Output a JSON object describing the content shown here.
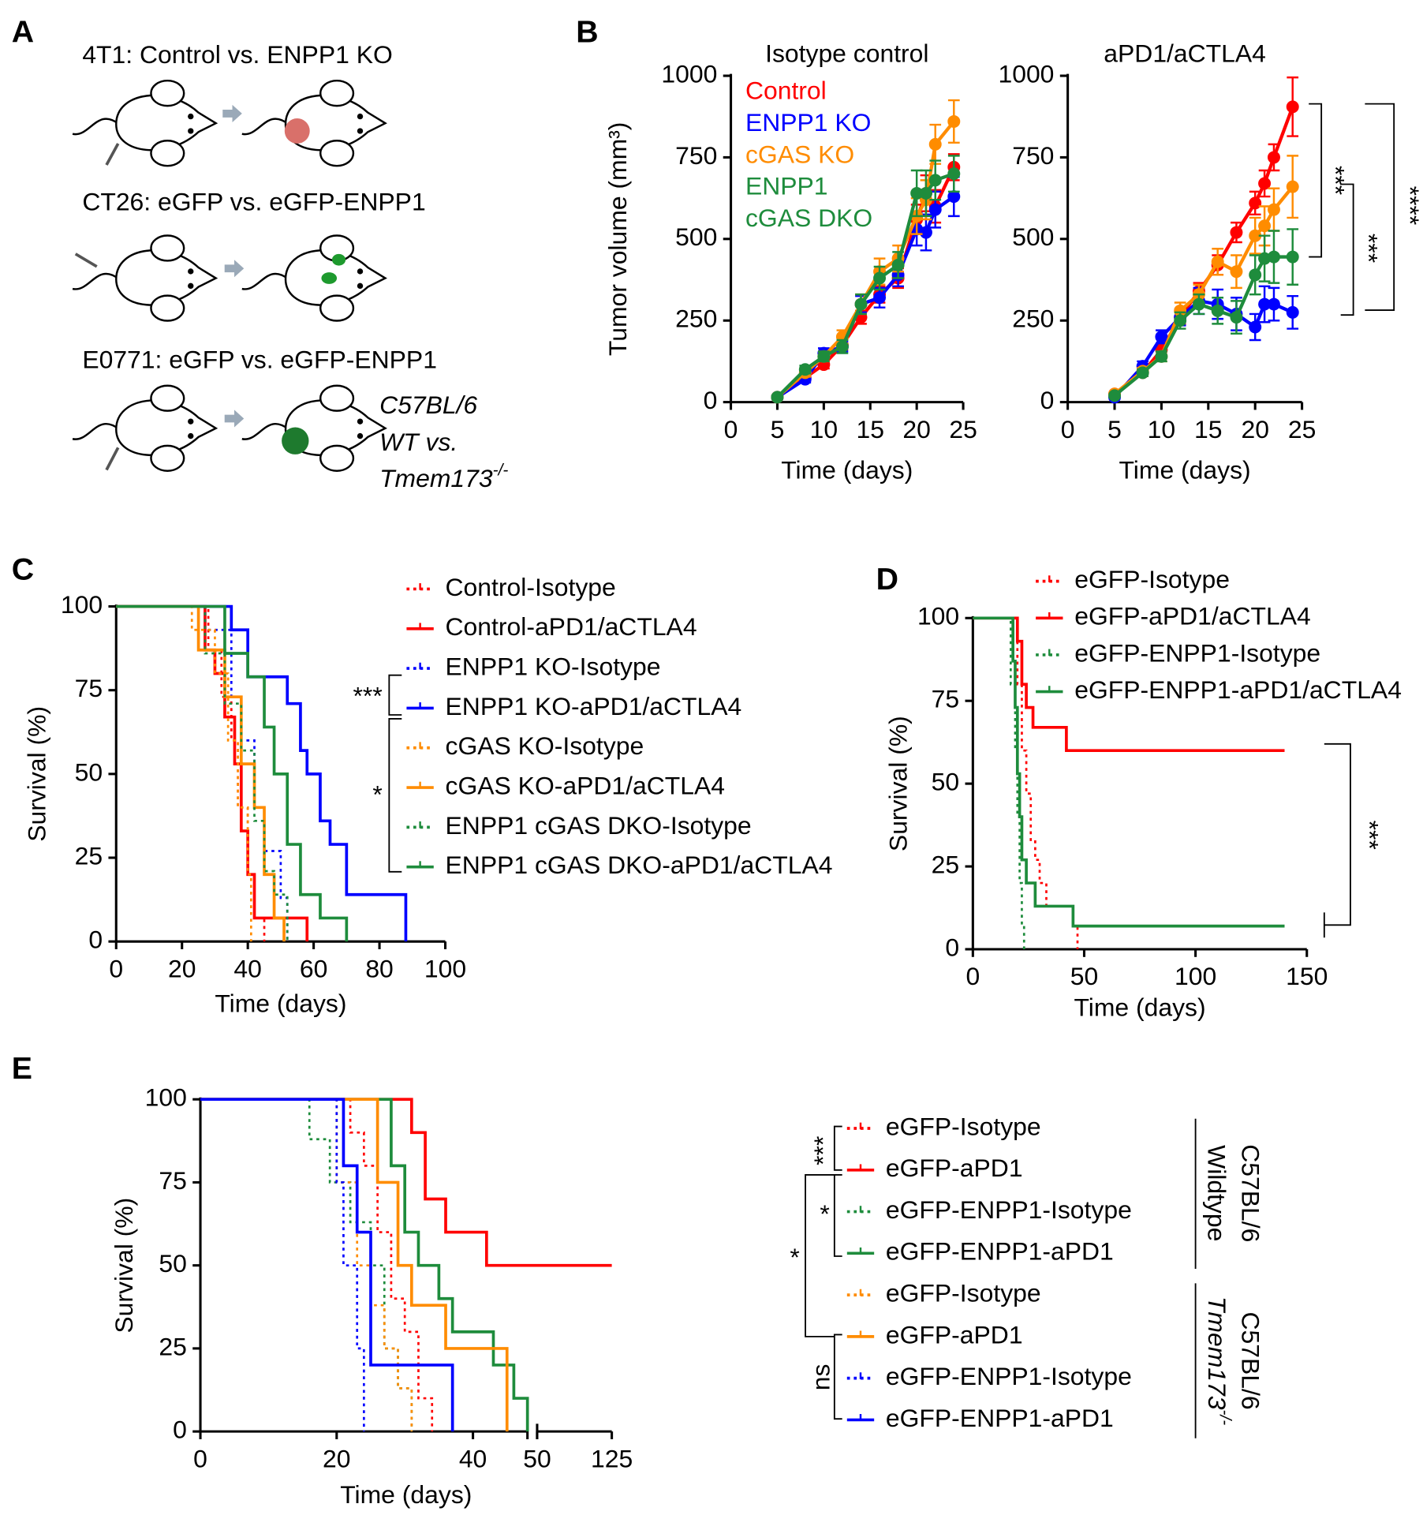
{
  "diagram": {
    "panel_label": "A",
    "rows": [
      "4T1: Control vs. ENPP1 KO",
      "CT26: eGFP vs. eGFP-ENPP1",
      "E0771: eGFP vs. eGFP-ENPP1"
    ],
    "note": [
      "C57BL/6",
      "WT vs.",
      "Tmem173-/-"
    ]
  },
  "chart_data": [
    {
      "panel_label": "B",
      "type": "line",
      "title": "Isotype control",
      "x_label": "Time (days)",
      "y_label": "Tumor volume (mm³)",
      "x": [
        5,
        8,
        10,
        12,
        14,
        16,
        18,
        20,
        21,
        22,
        24
      ],
      "xlim": [
        0,
        25
      ],
      "xticks": [
        0,
        5,
        10,
        15,
        20,
        25
      ],
      "ylim": [
        0,
        1000
      ],
      "yticks": [
        0,
        250,
        500,
        750,
        1000
      ],
      "series": [
        {
          "name": "Control",
          "color": "#ff0000",
          "values": [
            15,
            75,
            115,
            175,
            260,
            330,
            380,
            560,
            640,
            600,
            720
          ],
          "errors": [
            5,
            10,
            12,
            15,
            20,
            25,
            30,
            45,
            55,
            50,
            40
          ]
        },
        {
          "name": "ENPP1 KO",
          "color": "#0000ff",
          "values": [
            15,
            70,
            150,
            170,
            300,
            320,
            390,
            530,
            520,
            590,
            630
          ],
          "errors": [
            5,
            10,
            15,
            15,
            25,
            30,
            35,
            50,
            55,
            55,
            60
          ]
        },
        {
          "name": "cGAS KO",
          "color": "#ff8c00",
          "values": [
            15,
            90,
            140,
            200,
            300,
            400,
            440,
            570,
            620,
            790,
            860
          ],
          "errors": [
            5,
            12,
            15,
            20,
            30,
            40,
            40,
            55,
            60,
            60,
            65
          ]
        },
        {
          "name": "ENPP1 cGAS DKO",
          "color": "#1e8c3c",
          "values": [
            15,
            100,
            140,
            170,
            300,
            380,
            420,
            640,
            640,
            680,
            700
          ],
          "errors": [
            5,
            12,
            15,
            20,
            30,
            35,
            40,
            70,
            70,
            60,
            55
          ]
        }
      ]
    },
    {
      "type": "line",
      "title": "aPD1/aCTLA4",
      "x_label": "Time (days)",
      "x": [
        5,
        8,
        10,
        12,
        14,
        16,
        18,
        20,
        21,
        22,
        24
      ],
      "xlim": [
        0,
        25
      ],
      "xticks": [
        0,
        5,
        10,
        15,
        20,
        25
      ],
      "ylim": [
        0,
        1000
      ],
      "yticks": [
        0,
        250,
        500,
        750,
        1000
      ],
      "annotations": [
        "***",
        "***",
        "****"
      ],
      "series": [
        {
          "color": "#ff0000",
          "values": [
            25,
            90,
            160,
            260,
            340,
            420,
            520,
            610,
            670,
            750,
            905
          ],
          "errors": [
            5,
            10,
            15,
            20,
            25,
            30,
            30,
            35,
            40,
            40,
            90
          ]
        },
        {
          "color": "#0000ff",
          "values": [
            15,
            110,
            200,
            260,
            310,
            300,
            270,
            230,
            300,
            300,
            275
          ],
          "errors": [
            5,
            15,
            20,
            25,
            40,
            45,
            50,
            40,
            55,
            50,
            50
          ]
        },
        {
          "color": "#ff8c00",
          "values": [
            25,
            95,
            140,
            280,
            330,
            430,
            400,
            510,
            540,
            590,
            660
          ],
          "errors": [
            5,
            10,
            15,
            25,
            30,
            40,
            50,
            55,
            60,
            65,
            95
          ]
        },
        {
          "color": "#1e8c3c",
          "values": [
            20,
            90,
            140,
            250,
            300,
            280,
            260,
            390,
            440,
            445,
            445
          ],
          "errors": [
            5,
            10,
            15,
            25,
            30,
            40,
            50,
            60,
            70,
            80,
            85
          ]
        }
      ]
    },
    {
      "panel_label": "C",
      "type": "step",
      "x_label": "Time (days)",
      "y_label": "Survival (%)",
      "xlim": [
        0,
        100
      ],
      "xticks": [
        0,
        20,
        40,
        60,
        80,
        100
      ],
      "ylim": [
        0,
        100
      ],
      "yticks": [
        0,
        25,
        50,
        75,
        100
      ],
      "annotations": [
        "***",
        "*"
      ],
      "series": [
        {
          "name": "Control-Isotype",
          "color": "#ff0000",
          "style": "dotted",
          "x": [
            0,
            28,
            32,
            35,
            37,
            40,
            42,
            45
          ],
          "values": [
            100,
            87,
            73,
            60,
            40,
            20,
            7,
            0
          ]
        },
        {
          "name": "Control-aPD1/aCTLA4",
          "color": "#ff0000",
          "style": "solid",
          "x": [
            0,
            27,
            30,
            33,
            36,
            38,
            40,
            42,
            48,
            58
          ],
          "values": [
            100,
            87,
            80,
            67,
            53,
            33,
            20,
            7,
            7,
            0
          ]
        },
        {
          "name": "ENPP1 KO-Isotype",
          "color": "#0000ff",
          "style": "dotted",
          "x": [
            0,
            27,
            35,
            38,
            42,
            45,
            50,
            52
          ],
          "values": [
            100,
            93,
            73,
            60,
            40,
            27,
            13,
            0
          ]
        },
        {
          "name": "ENPP1 KO-aPD1/aCTLA4",
          "color": "#0000ff",
          "style": "solid",
          "x": [
            0,
            35,
            40,
            52,
            56,
            58,
            62,
            65,
            70,
            88
          ],
          "values": [
            100,
            93,
            79,
            71,
            57,
            50,
            36,
            29,
            14,
            0
          ]
        },
        {
          "name": "cGAS KO-Isotype",
          "color": "#ff8c00",
          "style": "dotted",
          "x": [
            0,
            23,
            30,
            34,
            37,
            40,
            41
          ],
          "values": [
            100,
            93,
            80,
            60,
            40,
            20,
            0
          ]
        },
        {
          "name": "cGAS KO-aPD1/aCTLA4",
          "color": "#ff8c00",
          "style": "solid",
          "x": [
            0,
            25,
            33,
            38,
            42,
            45,
            48,
            51
          ],
          "values": [
            100,
            87,
            73,
            53,
            40,
            20,
            7,
            0
          ]
        },
        {
          "name": "ENPP1 cGAS DKO-Isotype",
          "color": "#1e8c3c",
          "style": "dotted",
          "x": [
            0,
            27,
            33,
            38,
            42,
            45,
            48,
            52
          ],
          "values": [
            100,
            86,
            71,
            57,
            36,
            21,
            14,
            0
          ]
        },
        {
          "name": "ENPP1 cGAS DKO-aPD1/aCTLA4",
          "color": "#1e8c3c",
          "style": "solid",
          "x": [
            0,
            33,
            40,
            45,
            48,
            52,
            56,
            62,
            70
          ],
          "values": [
            100,
            86,
            79,
            64,
            50,
            29,
            14,
            7,
            0
          ]
        }
      ]
    },
    {
      "panel_label": "D",
      "type": "step",
      "x_label": "Time (days)",
      "y_label": "Survival (%)",
      "xlim": [
        0,
        150
      ],
      "xticks": [
        0,
        50,
        100,
        150
      ],
      "ylim": [
        0,
        100
      ],
      "yticks": [
        0,
        25,
        50,
        75,
        100
      ],
      "annotations": [
        "***"
      ],
      "series": [
        {
          "name": "eGFP-Isotype",
          "color": "#ff0000",
          "style": "dotted",
          "x": [
            0,
            20,
            22,
            24,
            26,
            28,
            30,
            33,
            45,
            47
          ],
          "values": [
            100,
            80,
            60,
            47,
            33,
            27,
            20,
            13,
            7,
            0
          ]
        },
        {
          "name": "eGFP-aPD1/aCTLA4",
          "color": "#ff0000",
          "style": "solid",
          "x": [
            0,
            20,
            22,
            24,
            27,
            42,
            140
          ],
          "values": [
            100,
            93,
            80,
            73,
            67,
            60,
            60
          ]
        },
        {
          "name": "eGFP-ENPP1-Isotype",
          "color": "#1e8c3c",
          "style": "dotted",
          "x": [
            0,
            17,
            19,
            20,
            21,
            22,
            23
          ],
          "values": [
            100,
            80,
            60,
            40,
            20,
            7,
            0
          ]
        },
        {
          "name": "eGFP-ENPP1-aPD1/aCTLA4",
          "color": "#1e8c3c",
          "style": "solid",
          "x": [
            0,
            18,
            19,
            20,
            21,
            22,
            24,
            28,
            35,
            45,
            140
          ],
          "values": [
            100,
            87,
            73,
            53,
            40,
            27,
            20,
            13,
            13,
            7,
            7
          ]
        }
      ]
    },
    {
      "panel_label": "E",
      "type": "step",
      "x_label": "Time (days)",
      "y_label": "Survival (%)",
      "xlim": [
        0,
        125
      ],
      "x_break": [
        48,
        50
      ],
      "xticks": [
        0,
        20,
        40,
        50,
        125
      ],
      "ylim": [
        0,
        100
      ],
      "yticks": [
        0,
        25,
        50,
        75,
        100
      ],
      "annotations": [
        "***",
        "*",
        "*",
        "ns"
      ],
      "legend_groups": [
        [
          "C57BL/6",
          "Wildtype"
        ],
        [
          "C57BL/6",
          "Tmem173-/-"
        ]
      ],
      "series": [
        {
          "name": "eGFP-Isotype",
          "color": "#ff0000",
          "style": "dotted",
          "x": [
            0,
            22,
            24,
            26,
            28,
            30,
            32,
            34
          ],
          "values": [
            100,
            90,
            80,
            60,
            40,
            30,
            10,
            0
          ]
        },
        {
          "name": "eGFP-aPD1",
          "color": "#ff0000",
          "style": "solid",
          "x": [
            0,
            31,
            33,
            36,
            42,
            125
          ],
          "values": [
            100,
            90,
            70,
            60,
            50,
            50
          ]
        },
        {
          "name": "eGFP-ENPP1-Isotype",
          "color": "#1e8c3c",
          "style": "dotted",
          "x": [
            0,
            16,
            19,
            22,
            25,
            27,
            29,
            31
          ],
          "values": [
            100,
            88,
            75,
            63,
            50,
            25,
            13,
            0
          ]
        },
        {
          "name": "eGFP-ENPP1-aPD1",
          "color": "#1e8c3c",
          "style": "solid",
          "x": [
            0,
            28,
            30,
            32,
            35,
            37,
            43,
            46,
            48
          ],
          "values": [
            100,
            80,
            60,
            50,
            40,
            30,
            20,
            10,
            0
          ]
        },
        {
          "name": "eGFP-Isotype",
          "color": "#ff8c00",
          "style": "dotted",
          "x": [
            0,
            20,
            23,
            25,
            27,
            29,
            31
          ],
          "values": [
            100,
            75,
            50,
            38,
            25,
            13,
            0
          ]
        },
        {
          "name": "eGFP-aPD1",
          "color": "#ff8c00",
          "style": "solid",
          "x": [
            0,
            26,
            29,
            31,
            36,
            45
          ],
          "values": [
            100,
            75,
            50,
            38,
            25,
            0
          ]
        },
        {
          "name": "eGFP-ENPP1-Isotype",
          "color": "#0000ff",
          "style": "dotted",
          "x": [
            0,
            20,
            21,
            23,
            24
          ],
          "values": [
            100,
            75,
            50,
            25,
            0
          ]
        },
        {
          "name": "eGFP-ENPP1-aPD1",
          "color": "#0000ff",
          "style": "solid",
          "x": [
            0,
            21,
            23,
            25,
            37
          ],
          "values": [
            100,
            80,
            60,
            20,
            0
          ]
        }
      ]
    }
  ]
}
